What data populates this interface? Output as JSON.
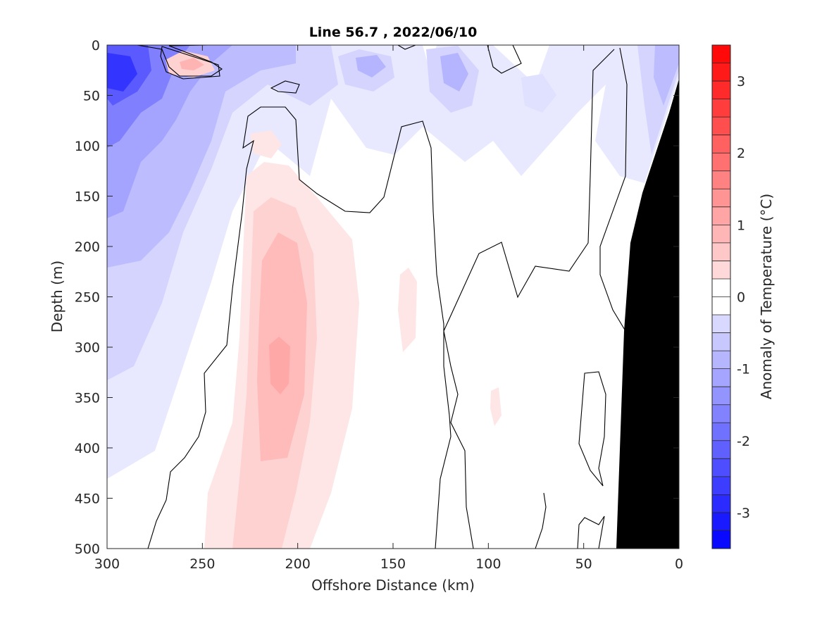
{
  "chart_data": {
    "type": "heatmap",
    "title": "Line 56.7 , 2022/06/10",
    "xlabel": "Offshore Distance (km)",
    "ylabel": "Depth (m)",
    "colorbar_label": "Anomaly of Temperature (°C)",
    "xlim": [
      300,
      0
    ],
    "ylim": [
      0,
      500
    ],
    "x_reversed": true,
    "y_reversed": true,
    "xticks": [
      300,
      250,
      200,
      150,
      100,
      50,
      0
    ],
    "yticks": [
      0,
      50,
      100,
      150,
      200,
      250,
      300,
      350,
      400,
      450,
      500
    ],
    "colorbar_ticks": [
      3,
      2,
      1,
      0,
      -1,
      -2,
      -3
    ],
    "clim": [
      -3.5,
      3.5
    ],
    "contour_interval": 0.25,
    "zero_contour_color": "#000000",
    "land_color": "#000000",
    "colors": {
      "negative": "#0000ff",
      "positive": "#ff0000",
      "neutral": "#ffffff"
    },
    "regions": [
      {
        "label": "cold core upper offshore",
        "x": 295,
        "y": 30,
        "value": -2.0
      },
      {
        "label": "cool offshore shelf",
        "x": 280,
        "y": 100,
        "value": -1.2
      },
      {
        "label": "cool offshore mid",
        "x": 285,
        "y": 220,
        "value": -0.75
      },
      {
        "label": "cool near-surface 220 km",
        "x": 215,
        "y": 15,
        "value": -0.75
      },
      {
        "label": "cool near-surface 160 km",
        "x": 160,
        "y": 20,
        "value": -0.75
      },
      {
        "label": "cool near-surface 120 km",
        "x": 120,
        "y": 25,
        "value": -0.75
      },
      {
        "label": "cool coastal wedge",
        "x": 15,
        "y": 60,
        "value": -0.75
      },
      {
        "label": "warm surface patch",
        "x": 255,
        "y": 22,
        "value": 0.5
      },
      {
        "label": "warm subsurface core",
        "x": 210,
        "y": 320,
        "value": 0.75
      },
      {
        "label": "warm patch 145 km",
        "x": 145,
        "y": 260,
        "value": 0.25
      },
      {
        "label": "warm patch 95 km",
        "x": 95,
        "y": 360,
        "value": 0.25
      }
    ]
  }
}
